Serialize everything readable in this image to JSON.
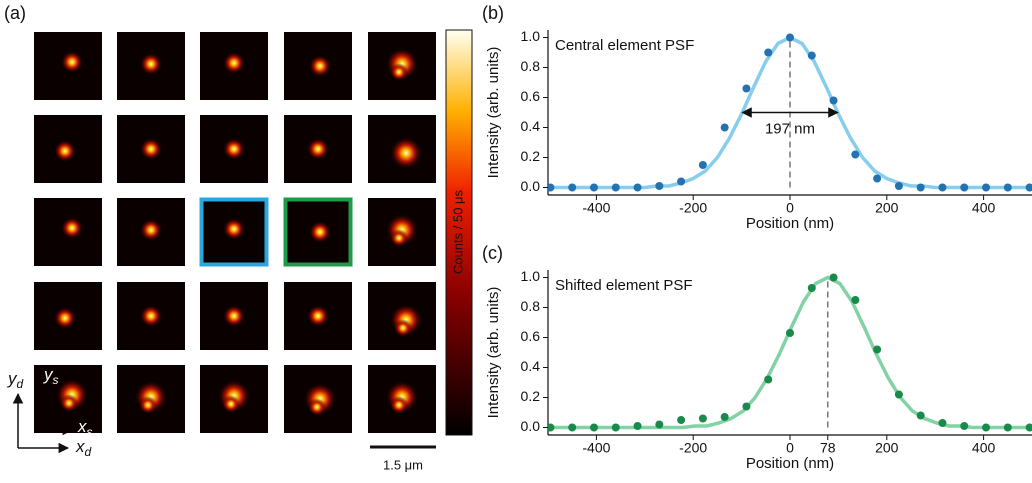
{
  "image_grid": {
    "panel_label": "(a)",
    "colorbar_label": "Counts / 50 μs",
    "scale_bar": "1.5 μm",
    "axes": {
      "x_d": {
        "symbol": "x",
        "subscript": "d"
      },
      "y_d": {
        "symbol": "y",
        "subscript": "d"
      },
      "x_s": {
        "symbol": "x",
        "subscript": "s"
      },
      "y_s": {
        "symbol": "y",
        "subscript": "s"
      }
    },
    "highlights": [
      {
        "row": 2,
        "col": 2,
        "color": "#29a8e0"
      },
      {
        "row": 2,
        "col": 3,
        "color": "#1e9a4a"
      }
    ]
  },
  "chart_data": [
    {
      "type": "scatter",
      "panel_label": "(b)",
      "annotation": "Central element PSF",
      "x_label": "Position (nm)",
      "y_label": "Intensity (arb. units)",
      "xlim": [
        -500,
        500
      ],
      "ylim": [
        -0.05,
        1.05
      ],
      "xticks": [
        -400,
        -200,
        0,
        200,
        400
      ],
      "yticks": [
        {
          "value": 0,
          "label": "0.0"
        },
        0.2,
        0.4,
        0.6,
        0.8,
        {
          "value": 1,
          "label": "1.0"
        }
      ],
      "marker_x": 0,
      "fwhm": {
        "value": 197,
        "label": "197 nm"
      },
      "points": {
        "color": "#2472b0",
        "x": [
          -495,
          -450,
          -405,
          -360,
          -315,
          -270,
          -225,
          -180,
          -135,
          -90,
          -45,
          0,
          45,
          90,
          135,
          180,
          225,
          270,
          315,
          360,
          405,
          450,
          495
        ],
        "values": [
          0,
          0,
          0,
          0,
          0,
          0.01,
          0.04,
          0.15,
          0.4,
          0.66,
          0.9,
          1,
          0.88,
          0.58,
          0.22,
          0.06,
          0.01,
          0,
          0,
          0,
          0,
          0,
          0
        ]
      },
      "fit": {
        "color": "#86cdee",
        "x": [
          -500,
          -475,
          -450,
          -425,
          -400,
          -375,
          -350,
          -325,
          -300,
          -275,
          -250,
          -225,
          -200,
          -175,
          -150,
          -125,
          -100,
          -75,
          -50,
          -25,
          0,
          25,
          50,
          75,
          100,
          125,
          150,
          175,
          200,
          225,
          250,
          275,
          300,
          325,
          350,
          375,
          400,
          425,
          450,
          475,
          500
        ],
        "values": [
          0,
          0,
          0,
          0,
          0,
          0,
          0,
          0,
          0,
          0.01,
          0.01,
          0.03,
          0.06,
          0.11,
          0.2,
          0.33,
          0.49,
          0.67,
          0.84,
          0.96,
          1,
          0.96,
          0.84,
          0.67,
          0.49,
          0.33,
          0.2,
          0.11,
          0.06,
          0.03,
          0.01,
          0.01,
          0,
          0,
          0,
          0,
          0,
          0,
          0,
          0,
          0
        ]
      }
    },
    {
      "type": "scatter",
      "panel_label": "(c)",
      "annotation": "Shifted element PSF",
      "x_label": "Position (nm)",
      "y_label": "Intensity (arb. units)",
      "xlim": [
        -500,
        500
      ],
      "ylim": [
        -0.05,
        1.05
      ],
      "xticks": [
        -400,
        -200,
        0,
        78,
        200,
        400
      ],
      "yticks": [
        {
          "value": 0,
          "label": "0.0"
        },
        0.2,
        0.4,
        0.6,
        0.8,
        {
          "value": 1,
          "label": "1.0"
        }
      ],
      "marker_x": 78,
      "points": {
        "color": "#1a8a4a",
        "x": [
          -495,
          -450,
          -405,
          -360,
          -315,
          -270,
          -225,
          -180,
          -135,
          -90,
          -45,
          0,
          45,
          90,
          135,
          180,
          225,
          270,
          315,
          360,
          405,
          450,
          495
        ],
        "values": [
          0,
          0,
          0,
          0,
          0.01,
          0.02,
          0.05,
          0.06,
          0.07,
          0.14,
          0.32,
          0.63,
          0.93,
          1,
          0.85,
          0.52,
          0.22,
          0.08,
          0.03,
          0.01,
          0,
          0,
          0
        ]
      },
      "fit": {
        "color": "#82d2a6",
        "x": [
          -497,
          -472,
          -447,
          -422,
          -397,
          -372,
          -347,
          -322,
          -297,
          -272,
          -247,
          -222,
          -197,
          -172,
          -147,
          -122,
          -97,
          -72,
          -47,
          -22,
          3,
          28,
          53,
          78,
          103,
          128,
          153,
          178,
          203,
          228,
          253,
          278,
          303,
          328,
          353,
          378,
          403,
          428,
          453,
          478,
          503
        ],
        "values": [
          0,
          0,
          0,
          0,
          0,
          0,
          0,
          0,
          0,
          0,
          0,
          0,
          0.01,
          0.01,
          0.03,
          0.06,
          0.11,
          0.2,
          0.33,
          0.49,
          0.67,
          0.84,
          0.96,
          1,
          0.96,
          0.84,
          0.67,
          0.49,
          0.33,
          0.2,
          0.11,
          0.06,
          0.03,
          0.01,
          0.01,
          0,
          0,
          0,
          0,
          0,
          0
        ]
      }
    }
  ]
}
